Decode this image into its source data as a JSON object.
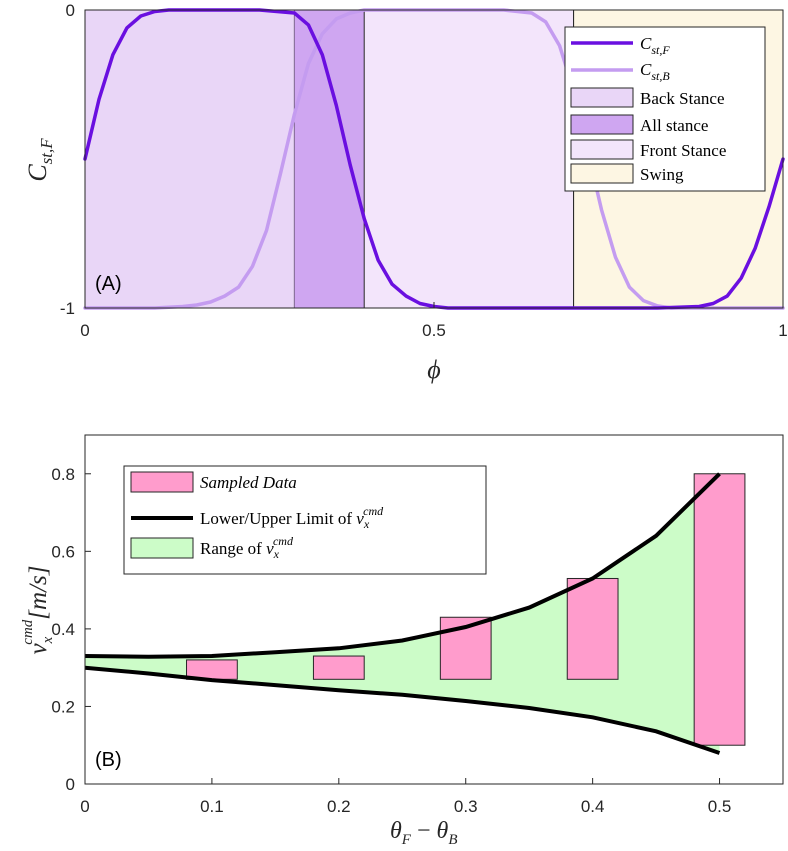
{
  "chart_data": [
    {
      "id": "A",
      "type": "line",
      "panel_label": "(A)",
      "xlabel": "ϕ",
      "ylabel": {
        "base": "C",
        "sub": "st,F"
      },
      "xlim": [
        0,
        1
      ],
      "ylim": [
        -1,
        0
      ],
      "xticks": [
        {
          "v": 0,
          "label": "0"
        },
        {
          "v": 0.5,
          "label": "0.5"
        },
        {
          "v": 1,
          "label": "1"
        }
      ],
      "yticks": [
        {
          "v": -1,
          "label": "-1"
        },
        {
          "v": 0,
          "label": "0"
        }
      ],
      "phases": [
        {
          "name": "Back Stance",
          "from": 0.0,
          "to": 0.3,
          "color": "#e9d6f7"
        },
        {
          "name": "All stance",
          "from": 0.3,
          "to": 0.4,
          "color": "#cfa6f1"
        },
        {
          "name": "Front Stance",
          "from": 0.4,
          "to": 0.7,
          "color": "#f3e5fb"
        },
        {
          "name": "Swing",
          "from": 0.7,
          "to": 1.0,
          "color": "#fdf6e3"
        }
      ],
      "series": [
        {
          "name": "C_st,F",
          "label": {
            "base": "C",
            "sub": "st,F"
          },
          "color": "#6a0fe0",
          "width": 3.5,
          "points": [
            [
              0.0,
              -0.5
            ],
            [
              0.02,
              -0.3
            ],
            [
              0.04,
              -0.15
            ],
            [
              0.06,
              -0.06
            ],
            [
              0.08,
              -0.02
            ],
            [
              0.1,
              -0.005
            ],
            [
              0.12,
              0.0
            ],
            [
              0.25,
              0.0
            ],
            [
              0.3,
              -0.01
            ],
            [
              0.32,
              -0.05
            ],
            [
              0.34,
              -0.15
            ],
            [
              0.36,
              -0.32
            ],
            [
              0.38,
              -0.52
            ],
            [
              0.4,
              -0.7
            ],
            [
              0.42,
              -0.84
            ],
            [
              0.44,
              -0.92
            ],
            [
              0.46,
              -0.96
            ],
            [
              0.48,
              -0.985
            ],
            [
              0.5,
              -0.995
            ],
            [
              0.52,
              -1.0
            ],
            [
              0.82,
              -1.0
            ],
            [
              0.88,
              -0.995
            ],
            [
              0.9,
              -0.985
            ],
            [
              0.92,
              -0.96
            ],
            [
              0.94,
              -0.9
            ],
            [
              0.96,
              -0.8
            ],
            [
              0.98,
              -0.66
            ],
            [
              1.0,
              -0.5
            ]
          ]
        },
        {
          "name": "C_st,B",
          "label": {
            "base": "C",
            "sub": "st,B"
          },
          "color": "#c49cf0",
          "width": 3.5,
          "points": [
            [
              0.0,
              -1.0
            ],
            [
              0.1,
              -1.0
            ],
            [
              0.14,
              -0.995
            ],
            [
              0.16,
              -0.99
            ],
            [
              0.18,
              -0.98
            ],
            [
              0.2,
              -0.96
            ],
            [
              0.22,
              -0.93
            ],
            [
              0.24,
              -0.86
            ],
            [
              0.26,
              -0.74
            ],
            [
              0.28,
              -0.55
            ],
            [
              0.3,
              -0.35
            ],
            [
              0.32,
              -0.18
            ],
            [
              0.34,
              -0.08
            ],
            [
              0.36,
              -0.03
            ],
            [
              0.38,
              -0.01
            ],
            [
              0.4,
              0.0
            ],
            [
              0.6,
              0.0
            ],
            [
              0.64,
              -0.01
            ],
            [
              0.66,
              -0.04
            ],
            [
              0.68,
              -0.12
            ],
            [
              0.7,
              -0.27
            ],
            [
              0.72,
              -0.47
            ],
            [
              0.74,
              -0.67
            ],
            [
              0.76,
              -0.83
            ],
            [
              0.78,
              -0.93
            ],
            [
              0.8,
              -0.975
            ],
            [
              0.82,
              -0.993
            ],
            [
              0.84,
              -1.0
            ],
            [
              1.0,
              -1.0
            ]
          ]
        }
      ],
      "legend": {
        "position": "top-right",
        "patch_labels": [
          "Back Stance",
          "All stance",
          "Front Stance",
          "Swing"
        ]
      }
    },
    {
      "id": "B",
      "type": "bar",
      "panel_label": "(B)",
      "xlabel": "θ_F − θ_B",
      "ylabel": "v_x^cmd [m/s]",
      "xlim": [
        0,
        0.55
      ],
      "ylim": [
        0,
        0.9
      ],
      "xticks": [
        {
          "v": 0,
          "label": "0"
        },
        {
          "v": 0.1,
          "label": "0.1"
        },
        {
          "v": 0.2,
          "label": "0.2"
        },
        {
          "v": 0.3,
          "label": "0.3"
        },
        {
          "v": 0.4,
          "label": "0.4"
        },
        {
          "v": 0.5,
          "label": "0.5"
        }
      ],
      "yticks": [
        {
          "v": 0,
          "label": "0"
        },
        {
          "v": 0.2,
          "label": "0.2"
        },
        {
          "v": 0.4,
          "label": "0.4"
        },
        {
          "v": 0.6,
          "label": "0.6"
        },
        {
          "v": 0.8,
          "label": "0.8"
        }
      ],
      "sampled": [
        {
          "x": 0.1,
          "low": 0.27,
          "high": 0.32
        },
        {
          "x": 0.2,
          "low": 0.27,
          "high": 0.33
        },
        {
          "x": 0.3,
          "low": 0.27,
          "high": 0.43
        },
        {
          "x": 0.4,
          "low": 0.27,
          "high": 0.53
        },
        {
          "x": 0.5,
          "low": 0.1,
          "high": 0.8
        }
      ],
      "bar_width": 0.04,
      "upper": [
        [
          0.0,
          0.33
        ],
        [
          0.05,
          0.328
        ],
        [
          0.1,
          0.33
        ],
        [
          0.15,
          0.34
        ],
        [
          0.2,
          0.35
        ],
        [
          0.25,
          0.37
        ],
        [
          0.3,
          0.405
        ],
        [
          0.35,
          0.455
        ],
        [
          0.4,
          0.53
        ],
        [
          0.45,
          0.64
        ],
        [
          0.5,
          0.8
        ]
      ],
      "lower": [
        [
          0.0,
          0.3
        ],
        [
          0.05,
          0.285
        ],
        [
          0.1,
          0.268
        ],
        [
          0.15,
          0.255
        ],
        [
          0.2,
          0.242
        ],
        [
          0.25,
          0.23
        ],
        [
          0.3,
          0.214
        ],
        [
          0.35,
          0.196
        ],
        [
          0.4,
          0.172
        ],
        [
          0.45,
          0.136
        ],
        [
          0.5,
          0.08
        ]
      ],
      "colors": {
        "bar": "#ff9ccc",
        "range": "#ccfcc8",
        "limit": "#000000"
      },
      "legend": {
        "position": "top-left",
        "sampled_label": "Sampled Data",
        "limit_label": "Lower/Upper Limit of ",
        "range_label": "Range of ",
        "var_base": "v",
        "var_sub": "x",
        "var_sup": "cmd"
      }
    }
  ]
}
